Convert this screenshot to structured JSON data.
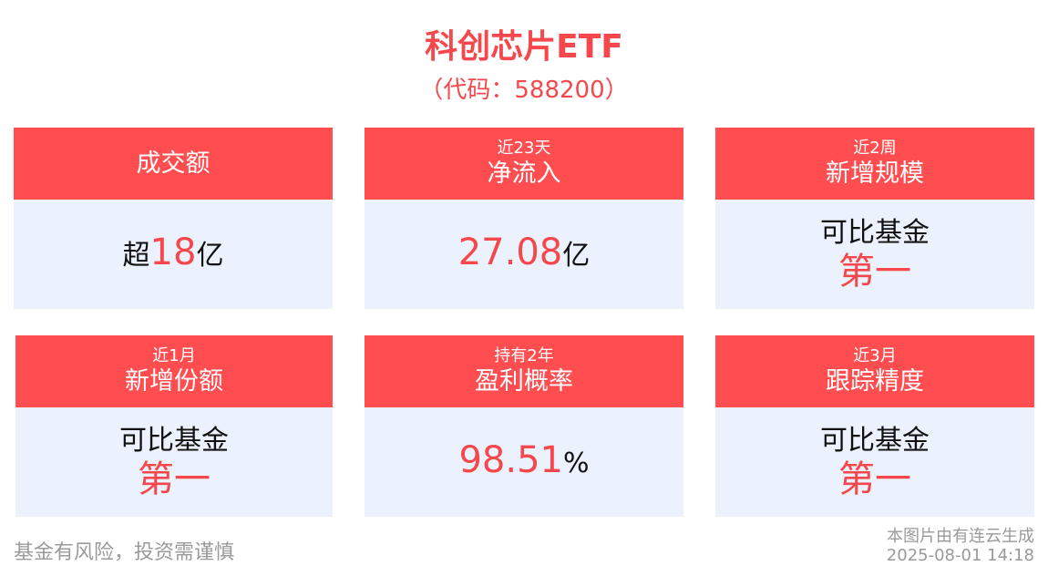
{
  "title": "科创芯片ETF",
  "code": "（代码：588200）",
  "cards": [
    {
      "sub": "",
      "title": "成交额",
      "lines": [
        [
          {
            "t": "超",
            "red": false
          },
          {
            "t": "18",
            "red": true,
            "big": true
          },
          {
            "t": "亿",
            "red": false
          }
        ]
      ]
    },
    {
      "sub": "近23天",
      "title": "净流入",
      "lines": [
        [
          {
            "t": "27.08",
            "red": true,
            "big": true
          },
          {
            "t": "亿",
            "red": false
          }
        ]
      ]
    },
    {
      "sub": "近2周",
      "title": "新增规模",
      "lines": [
        [
          {
            "t": "可比基金",
            "red": false
          }
        ],
        [
          {
            "t": "第一",
            "red": true,
            "big": true
          }
        ]
      ]
    },
    {
      "sub": "近1月",
      "title": "新增份额",
      "lines": [
        [
          {
            "t": "可比基金",
            "red": false
          }
        ],
        [
          {
            "t": "第一",
            "red": true,
            "big": true
          }
        ]
      ]
    },
    {
      "sub": "持有2年",
      "title": "盈利概率",
      "lines": [
        [
          {
            "t": "98.51",
            "red": true,
            "big": true
          },
          {
            "t": "%",
            "red": false
          }
        ]
      ]
    },
    {
      "sub": "近3月",
      "title": "跟踪精度",
      "lines": [
        [
          {
            "t": "可比基金",
            "red": false
          }
        ],
        [
          {
            "t": "第一",
            "red": true,
            "big": true
          }
        ]
      ]
    }
  ],
  "footer": {
    "disclaimer": "基金有风险，投资需谨慎",
    "source": "本图片由有连云生成",
    "timestamp": "2025-08-01 14:18"
  },
  "colors": {
    "accent": "#ff4d50",
    "body_bg": "#ebf2fd"
  }
}
